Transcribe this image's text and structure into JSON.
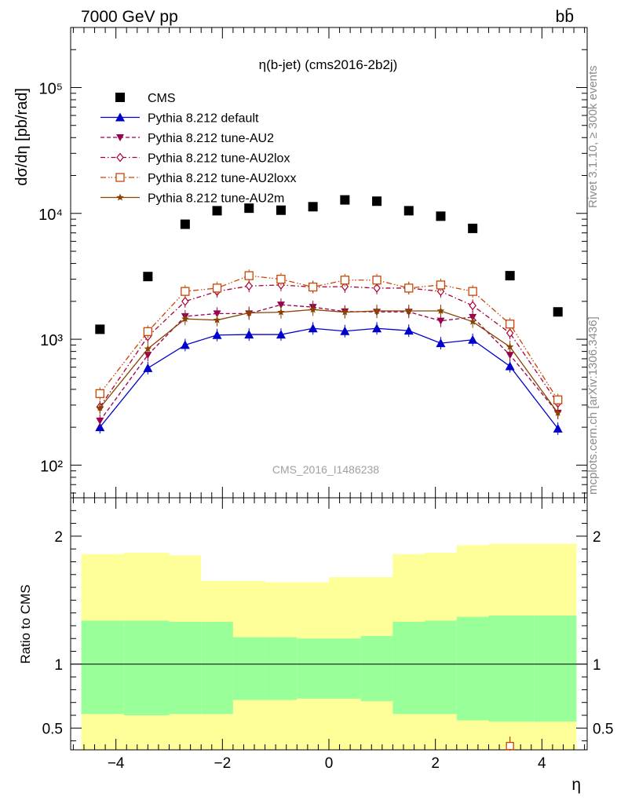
{
  "header": {
    "left": "7000 GeV pp",
    "right": "bb̄"
  },
  "side_text": {
    "rivet": "Rivet 3.1.10, ≥ 300k events",
    "source": "mcplots.cern.ch [arXiv:1306.3436]"
  },
  "chart_data": {
    "type": "line",
    "title": "η(b-jet) (cms2016-2b2j)",
    "watermark": "CMS_2016_I1486238",
    "xlabel": "η",
    "ylabel": "dσ/dη [pb/rad]",
    "yscale": "log",
    "xlim": [
      -4.85,
      4.85
    ],
    "ylim": [
      55,
      300000
    ],
    "x_ticks": [
      -4,
      -2,
      0,
      2,
      4
    ],
    "x_tick_labels": [
      "−4",
      "−2",
      "0",
      "2",
      "4"
    ],
    "y_ticks": [
      100,
      1000,
      10000,
      100000
    ],
    "y_tick_labels": [
      "10²",
      "10³",
      "10⁴",
      "10⁵"
    ],
    "legend_position": "top-left",
    "x": [
      -4.3,
      -3.4,
      -2.7,
      -2.1,
      -1.5,
      -0.9,
      -0.3,
      0.3,
      0.9,
      1.5,
      2.1,
      2.7,
      3.4,
      4.3
    ],
    "series": [
      {
        "name": "CMS",
        "color": "#000000",
        "marker": "square",
        "line": "none",
        "values": [
          1200,
          3150,
          8200,
          10500,
          11000,
          10600,
          11300,
          12800,
          12500,
          10500,
          9500,
          7600,
          3200,
          1650
        ]
      },
      {
        "name": "Pythia 8.212 default",
        "color": "#0000cc",
        "marker": "triangle-up",
        "line": "solid",
        "values": [
          200,
          590,
          900,
          1080,
          1090,
          1090,
          1220,
          1160,
          1220,
          1170,
          930,
          990,
          610,
          195
        ]
      },
      {
        "name": "Pythia 8.212 tune-AU2",
        "color": "#99004d",
        "marker": "triangle-down",
        "line": "dashed",
        "values": [
          225,
          750,
          1520,
          1600,
          1600,
          1880,
          1800,
          1660,
          1650,
          1650,
          1400,
          1500,
          750,
          260
        ]
      },
      {
        "name": "Pythia 8.212 tune-AU2lox",
        "color": "#aa0033",
        "marker": "diamond-open",
        "line": "dashdot",
        "values": [
          290,
          1050,
          2000,
          2400,
          2650,
          2700,
          2600,
          2620,
          2550,
          2550,
          2400,
          1850,
          1120,
          310
        ]
      },
      {
        "name": "Pythia 8.212 tune-AU2loxx",
        "color": "#cc4400",
        "marker": "square-open",
        "line": "dashdotdot",
        "values": [
          370,
          1150,
          2400,
          2550,
          3200,
          3000,
          2600,
          2950,
          2950,
          2550,
          2700,
          2400,
          1320,
          330
        ]
      },
      {
        "name": "Pythia 8.212 tune-AU2m",
        "color": "#884400",
        "marker": "star",
        "line": "solid",
        "values": [
          285,
          840,
          1450,
          1420,
          1620,
          1640,
          1720,
          1640,
          1680,
          1680,
          1680,
          1380,
          870,
          260
        ]
      }
    ],
    "ratio": {
      "ylabel": "Ratio to CMS",
      "ylim": [
        0.33,
        2.3
      ],
      "y_ticks": [
        0.5,
        1,
        2
      ],
      "y_tick_labels": [
        "0.5",
        "1",
        "2"
      ],
      "bin_edges": [
        -4.65,
        -3.85,
        -3.0,
        -2.4,
        -1.8,
        -1.2,
        -0.6,
        0.0,
        0.6,
        1.2,
        1.8,
        2.4,
        3.0,
        3.85,
        4.65
      ],
      "band_yellow_lo": [
        0.3,
        0.3,
        0.3,
        0.3,
        0.3,
        0.3,
        0.3,
        0.3,
        0.3,
        0.3,
        0.3,
        0.3,
        0.3,
        0.3
      ],
      "band_yellow_hi": [
        1.86,
        1.87,
        1.85,
        1.65,
        1.65,
        1.64,
        1.64,
        1.68,
        1.68,
        1.86,
        1.87,
        1.93,
        1.94,
        1.94
      ],
      "band_green_lo": [
        0.61,
        0.6,
        0.61,
        0.61,
        0.72,
        0.72,
        0.73,
        0.73,
        0.71,
        0.61,
        0.61,
        0.56,
        0.55,
        0.55
      ],
      "band_green_hi": [
        1.34,
        1.34,
        1.33,
        1.33,
        1.21,
        1.21,
        1.2,
        1.2,
        1.22,
        1.33,
        1.34,
        1.37,
        1.38,
        1.38
      ],
      "reference": 1,
      "marker_point": {
        "x": 3.4,
        "y": 0.36,
        "color": "#cc4400"
      }
    }
  }
}
